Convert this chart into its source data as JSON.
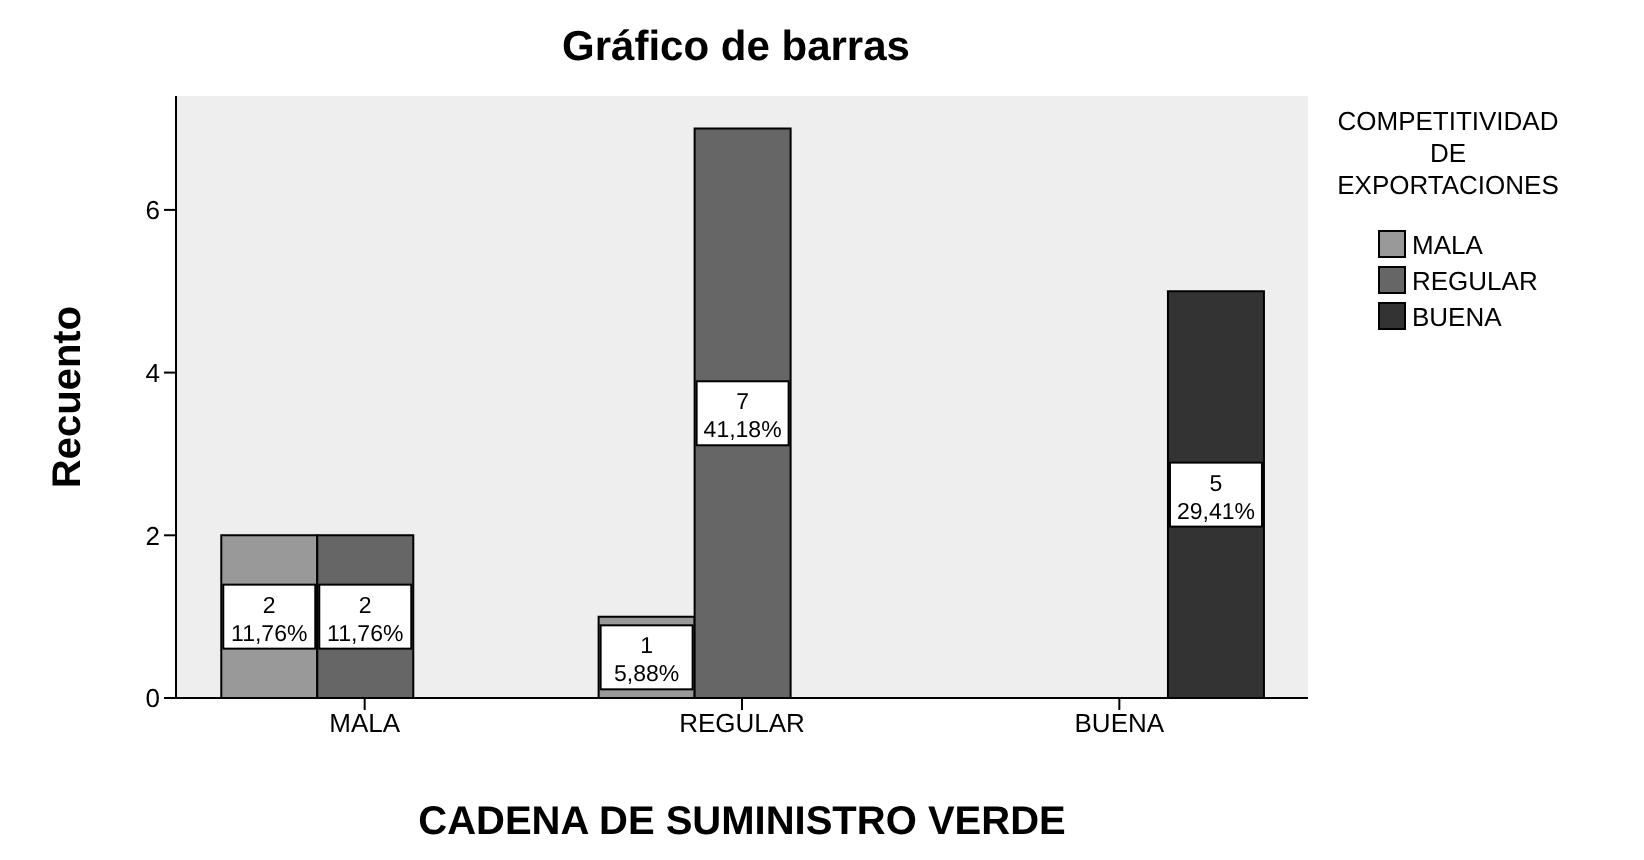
{
  "chart_data": {
    "type": "bar",
    "title": "Gráfico de barras",
    "xlabel": "CADENA DE SUMINISTRO VERDE",
    "ylabel": "Recuento",
    "legend_title": "COMPETITIVIDAD DE EXPORTACIONES",
    "categories": [
      "MALA",
      "REGULAR",
      "BUENA"
    ],
    "series": [
      {
        "name": "MALA",
        "color": "#999999",
        "values": [
          2,
          1,
          null
        ],
        "value_labels": [
          "2\n11,76%",
          "1\n5,88%",
          null
        ]
      },
      {
        "name": "REGULAR",
        "color": "#666666",
        "values": [
          2,
          7,
          null
        ],
        "value_labels": [
          "2\n11,76%",
          "7\n41,18%",
          null
        ]
      },
      {
        "name": "BUENA",
        "color": "#333333",
        "values": [
          null,
          null,
          5
        ],
        "value_labels": [
          null,
          null,
          "5\n29,41%"
        ]
      }
    ],
    "ylim": [
      0,
      7.4
    ],
    "yticks": [
      0,
      2,
      4,
      6
    ],
    "grid": false,
    "legend": "top right"
  }
}
